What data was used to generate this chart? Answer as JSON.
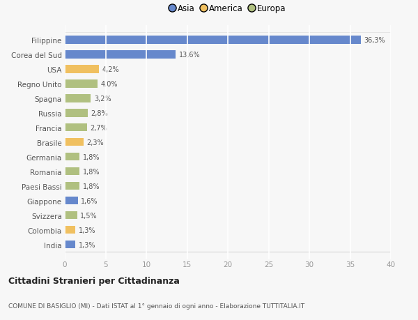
{
  "categories": [
    "India",
    "Colombia",
    "Svizzera",
    "Giappone",
    "Paesi Bassi",
    "Romania",
    "Germania",
    "Brasile",
    "Francia",
    "Russia",
    "Spagna",
    "Regno Unito",
    "USA",
    "Corea del Sud",
    "Filippine"
  ],
  "values": [
    1.3,
    1.3,
    1.5,
    1.6,
    1.8,
    1.8,
    1.8,
    2.3,
    2.7,
    2.8,
    3.2,
    4.0,
    4.2,
    13.6,
    36.3
  ],
  "labels": [
    "1,3%",
    "1,3%",
    "1,5%",
    "1,6%",
    "1,8%",
    "1,8%",
    "1,8%",
    "2,3%",
    "2,7%",
    "2,8%",
    "3,2%",
    "4,0%",
    "4,2%",
    "13,6%",
    "36,3%"
  ],
  "colors": [
    "#6688cc",
    "#f0c060",
    "#b0c080",
    "#6688cc",
    "#b0c080",
    "#b0c080",
    "#b0c080",
    "#f0c060",
    "#b0c080",
    "#b0c080",
    "#b0c080",
    "#b0c080",
    "#f0c060",
    "#6688cc",
    "#6688cc"
  ],
  "legend_labels": [
    "Asia",
    "America",
    "Europa"
  ],
  "legend_colors": [
    "#6688cc",
    "#f0c060",
    "#b0c080"
  ],
  "xlim": [
    0,
    40
  ],
  "xticks": [
    0,
    5,
    10,
    15,
    20,
    25,
    30,
    35,
    40
  ],
  "title": "Cittadini Stranieri per Cittadinanza",
  "subtitle": "COMUNE DI BASIGLIO (MI) - Dati ISTAT al 1° gennaio di ogni anno - Elaborazione TUTTITALIA.IT",
  "bg_color": "#f7f7f7",
  "grid_color": "#ffffff",
  "bar_height": 0.55
}
